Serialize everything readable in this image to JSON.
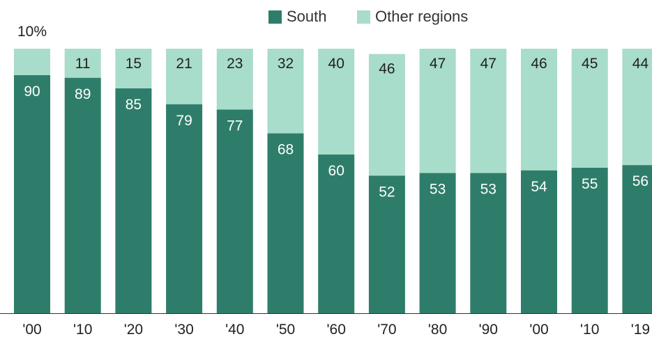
{
  "chart_data": {
    "type": "bar",
    "stacked": true,
    "categories": [
      "'00",
      "'10",
      "'20",
      "'30",
      "'40",
      "'50",
      "'60",
      "'70",
      "'80",
      "'90",
      "'00",
      "'10",
      "'19"
    ],
    "series": [
      {
        "name": "South",
        "values": [
          90,
          89,
          85,
          79,
          77,
          68,
          60,
          52,
          53,
          53,
          54,
          55,
          56
        ],
        "color": "#2e7d6a"
      },
      {
        "name": "Other regions",
        "values": [
          10,
          11,
          15,
          21,
          23,
          32,
          40,
          46,
          47,
          47,
          46,
          45,
          44
        ],
        "color": "#a8dccb"
      }
    ],
    "other_labels": [
      "10%",
      "11",
      "15",
      "21",
      "23",
      "32",
      "40",
      "46",
      "47",
      "47",
      "46",
      "45",
      "44"
    ],
    "ylim": [
      0,
      100
    ],
    "grid": false,
    "legend_position": "top-center",
    "title": "",
    "xlabel": "",
    "ylabel": ""
  },
  "legend": {
    "south_label": "South",
    "other_label": "Other regions"
  }
}
